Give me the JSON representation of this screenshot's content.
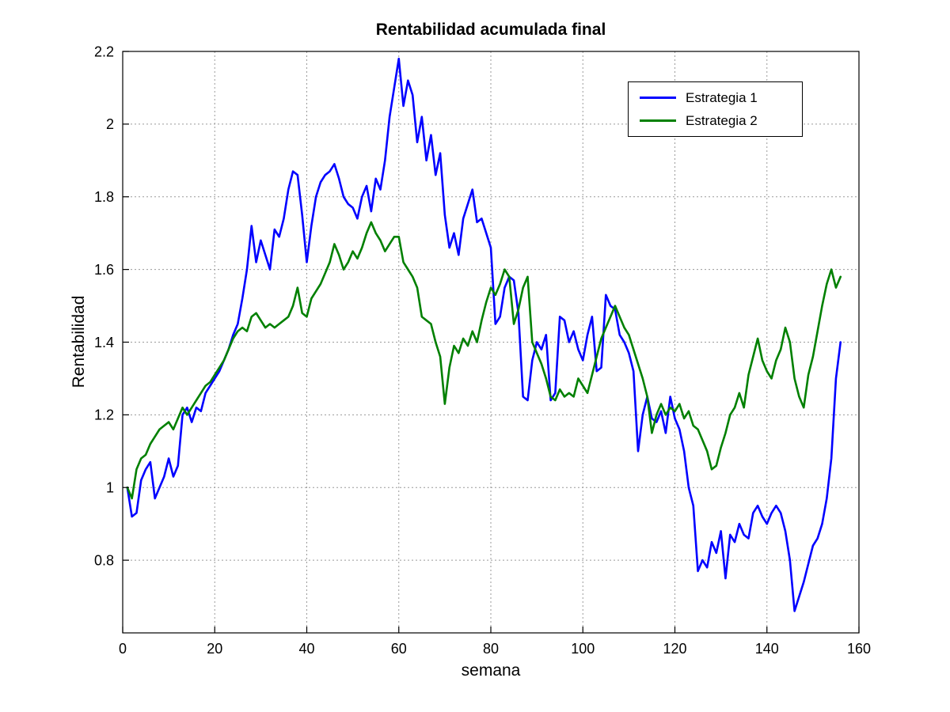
{
  "figure": {
    "title": "Rentabilidad acumulada final",
    "xlabel": "semana",
    "ylabel": "Rentabilidad"
  },
  "legend": {
    "items": [
      {
        "label": "Estrategia 1",
        "color": "#0000FF"
      },
      {
        "label": "Estrategia 2",
        "color": "#008000"
      }
    ]
  },
  "chart_data": {
    "type": "line",
    "title": "Rentabilidad acumulada final",
    "xlabel": "semana",
    "ylabel": "Rentabilidad",
    "xlim": [
      0,
      160
    ],
    "ylim": [
      0.6,
      2.2
    ],
    "xticks": [
      0,
      20,
      40,
      60,
      80,
      100,
      120,
      140,
      160
    ],
    "yticks": [
      0.8,
      1,
      1.2,
      1.4,
      1.6,
      1.8,
      2,
      2.2
    ],
    "grid": true,
    "legend_position": "top-right",
    "x_start": 1,
    "series": [
      {
        "name": "Estrategia 1",
        "color": "#0000FF",
        "values": [
          1.0,
          0.92,
          0.93,
          1.02,
          1.05,
          1.07,
          0.97,
          1.0,
          1.03,
          1.08,
          1.03,
          1.06,
          1.2,
          1.22,
          1.18,
          1.22,
          1.21,
          1.26,
          1.28,
          1.3,
          1.32,
          1.35,
          1.38,
          1.42,
          1.45,
          1.52,
          1.6,
          1.72,
          1.62,
          1.68,
          1.64,
          1.6,
          1.71,
          1.69,
          1.74,
          1.82,
          1.87,
          1.86,
          1.75,
          1.62,
          1.72,
          1.8,
          1.84,
          1.86,
          1.87,
          1.89,
          1.85,
          1.8,
          1.78,
          1.77,
          1.74,
          1.8,
          1.83,
          1.76,
          1.85,
          1.82,
          1.9,
          2.02,
          2.1,
          2.18,
          2.05,
          2.12,
          2.08,
          1.95,
          2.02,
          1.9,
          1.97,
          1.86,
          1.92,
          1.75,
          1.66,
          1.7,
          1.64,
          1.74,
          1.78,
          1.82,
          1.73,
          1.74,
          1.7,
          1.66,
          1.45,
          1.47,
          1.55,
          1.58,
          1.57,
          1.48,
          1.25,
          1.24,
          1.35,
          1.4,
          1.38,
          1.42,
          1.24,
          1.26,
          1.47,
          1.46,
          1.4,
          1.43,
          1.38,
          1.35,
          1.42,
          1.47,
          1.32,
          1.33,
          1.53,
          1.5,
          1.49,
          1.42,
          1.4,
          1.37,
          1.32,
          1.1,
          1.2,
          1.25,
          1.19,
          1.18,
          1.21,
          1.15,
          1.25,
          1.19,
          1.16,
          1.1,
          1.0,
          0.95,
          0.77,
          0.8,
          0.78,
          0.85,
          0.82,
          0.88,
          0.75,
          0.87,
          0.85,
          0.9,
          0.87,
          0.86,
          0.93,
          0.95,
          0.92,
          0.9,
          0.93,
          0.95,
          0.93,
          0.88,
          0.8,
          0.66,
          0.7,
          0.74,
          0.79,
          0.84,
          0.86,
          0.9,
          0.97,
          1.08,
          1.3,
          1.4
        ]
      },
      {
        "name": "Estrategia 2",
        "color": "#008000",
        "values": [
          1.0,
          0.97,
          1.05,
          1.08,
          1.09,
          1.12,
          1.14,
          1.16,
          1.17,
          1.18,
          1.16,
          1.19,
          1.22,
          1.2,
          1.22,
          1.24,
          1.26,
          1.28,
          1.29,
          1.31,
          1.33,
          1.35,
          1.38,
          1.41,
          1.43,
          1.44,
          1.43,
          1.47,
          1.48,
          1.46,
          1.44,
          1.45,
          1.44,
          1.45,
          1.46,
          1.47,
          1.5,
          1.55,
          1.48,
          1.47,
          1.52,
          1.54,
          1.56,
          1.59,
          1.62,
          1.67,
          1.64,
          1.6,
          1.62,
          1.65,
          1.63,
          1.66,
          1.7,
          1.73,
          1.7,
          1.68,
          1.65,
          1.67,
          1.69,
          1.69,
          1.62,
          1.6,
          1.58,
          1.55,
          1.47,
          1.46,
          1.45,
          1.4,
          1.36,
          1.23,
          1.33,
          1.39,
          1.37,
          1.41,
          1.39,
          1.43,
          1.4,
          1.46,
          1.51,
          1.55,
          1.53,
          1.56,
          1.6,
          1.58,
          1.45,
          1.49,
          1.55,
          1.58,
          1.4,
          1.37,
          1.34,
          1.3,
          1.25,
          1.24,
          1.27,
          1.25,
          1.26,
          1.25,
          1.3,
          1.28,
          1.26,
          1.31,
          1.36,
          1.41,
          1.44,
          1.47,
          1.5,
          1.47,
          1.44,
          1.42,
          1.38,
          1.34,
          1.3,
          1.25,
          1.15,
          1.2,
          1.23,
          1.2,
          1.22,
          1.21,
          1.23,
          1.19,
          1.21,
          1.17,
          1.16,
          1.13,
          1.1,
          1.05,
          1.06,
          1.11,
          1.15,
          1.2,
          1.22,
          1.26,
          1.22,
          1.31,
          1.36,
          1.41,
          1.35,
          1.32,
          1.3,
          1.35,
          1.38,
          1.44,
          1.4,
          1.3,
          1.25,
          1.22,
          1.31,
          1.36,
          1.43,
          1.5,
          1.56,
          1.6,
          1.55,
          1.58
        ]
      }
    ]
  }
}
